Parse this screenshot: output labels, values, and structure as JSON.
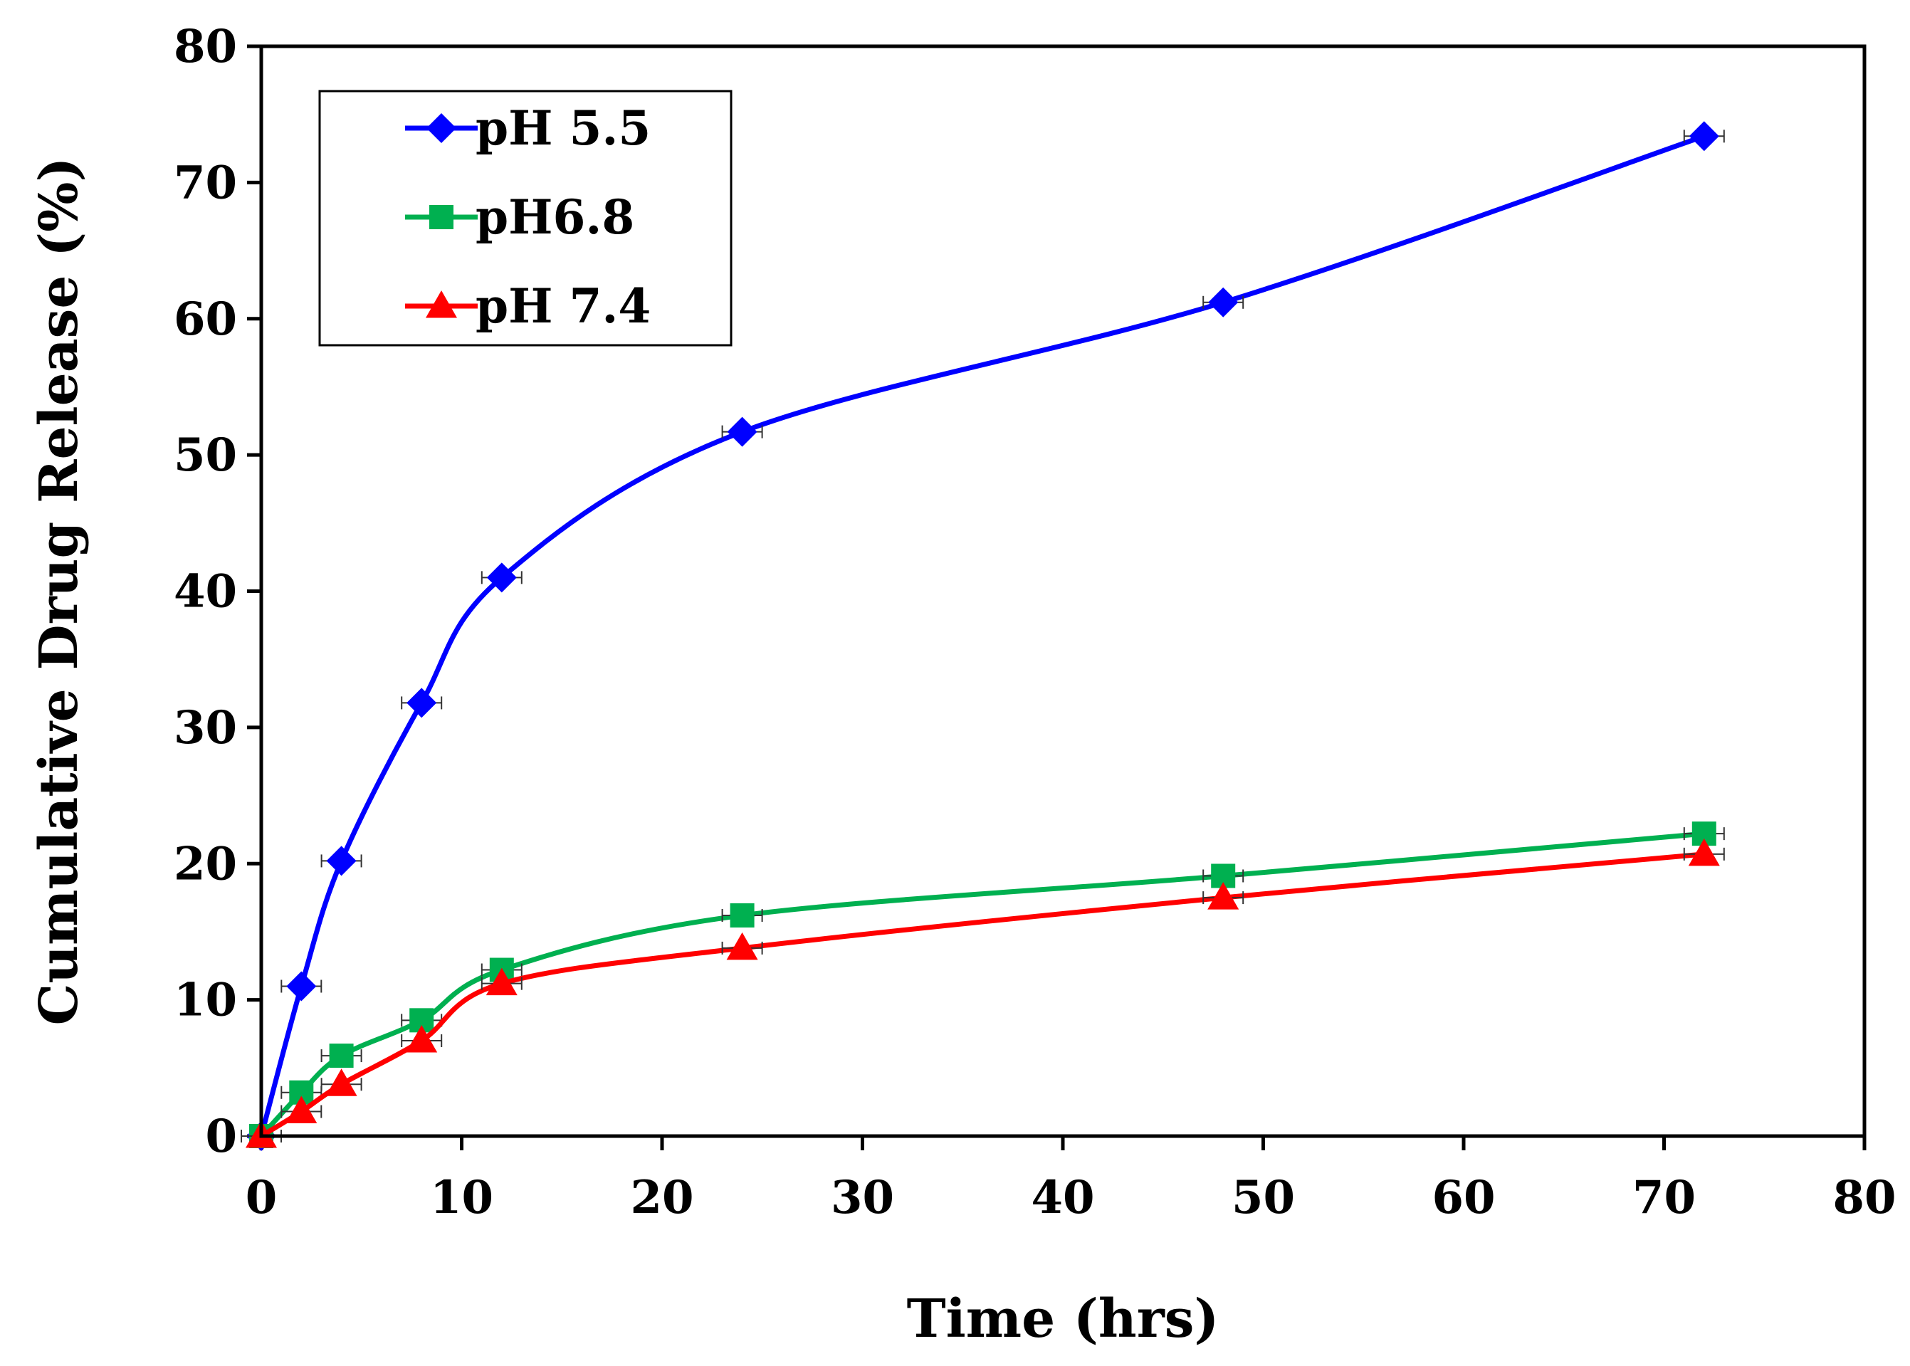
{
  "chart_data": {
    "type": "line",
    "title": "",
    "xlabel": "Time (hrs)",
    "ylabel": "Cumulative Drug Release (%)",
    "xlim": [
      0,
      80
    ],
    "ylim": [
      0,
      80
    ],
    "xticks": [
      0,
      10,
      20,
      30,
      40,
      50,
      60,
      70,
      80
    ],
    "yticks": [
      0,
      10,
      20,
      30,
      40,
      50,
      60,
      70,
      80
    ],
    "grid": false,
    "legend_position": "top-left",
    "x": [
      0,
      2,
      4,
      8,
      12,
      24,
      48,
      72
    ],
    "series": [
      {
        "name": "pH 5.5",
        "color": "#0000ff",
        "marker": "diamond",
        "values": [
          0,
          11.0,
          20.2,
          31.8,
          41.0,
          51.7,
          61.2,
          73.4
        ]
      },
      {
        "name": "pH6.8",
        "color": "#00b050",
        "marker": "square",
        "values": [
          0,
          3.2,
          5.9,
          8.5,
          12.2,
          16.2,
          19.1,
          22.2
        ]
      },
      {
        "name": "pH 7.4",
        "color": "#ff0000",
        "marker": "triangle",
        "values": [
          0,
          1.8,
          3.8,
          7.0,
          11.2,
          13.8,
          17.5,
          20.7
        ]
      }
    ]
  }
}
